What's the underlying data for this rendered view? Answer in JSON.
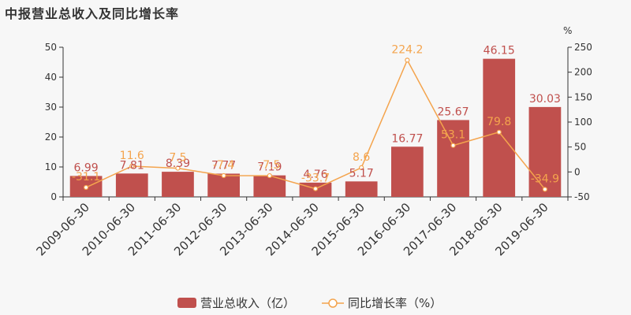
{
  "title": "中报营业总收入及同比增长率",
  "chart_data": {
    "type": "bar",
    "categories": [
      "2009-06-30",
      "2010-06-30",
      "2011-06-30",
      "2012-06-30",
      "2013-06-30",
      "2014-06-30",
      "2015-06-30",
      "2016-06-30",
      "2017-06-30",
      "2018-06-30",
      "2019-06-30"
    ],
    "series": [
      {
        "name": "营业总收入（亿）",
        "type": "bar",
        "axis": "left",
        "values": [
          6.99,
          7.81,
          8.39,
          7.77,
          7.19,
          4.76,
          5.17,
          16.77,
          25.67,
          46.15,
          30.03
        ],
        "labels": [
          "6.99",
          "7.81",
          "8.39",
          "7.77",
          "7.19",
          "4.76",
          "5.17",
          "16.77",
          "25.67",
          "46.15",
          "30.03"
        ],
        "color": "#c0504d"
      },
      {
        "name": "同比增长率（%）",
        "type": "line",
        "axis": "right",
        "values": [
          -31.1,
          11.6,
          7.5,
          -7.4,
          -7.5,
          -33.7,
          8.6,
          224.2,
          53.1,
          79.8,
          -34.9
        ],
        "labels": [
          "-31.1",
          "11.6",
          "7.5",
          "-7.4",
          "-7.5",
          "-33.7",
          "8.6",
          "224.2",
          "53.1",
          "79.8",
          "-34.9"
        ],
        "color": "#f4a44d"
      }
    ],
    "y_left": {
      "ticks": [
        "0",
        "10",
        "20",
        "30",
        "40",
        "50"
      ],
      "ylim": [
        0,
        50
      ]
    },
    "y_right": {
      "unit": "%",
      "ticks": [
        "-50",
        "0",
        "50",
        "100",
        "150",
        "200",
        "250"
      ],
      "ylim": [
        -50,
        250
      ]
    },
    "legend": "bottom-center",
    "grid": false
  }
}
